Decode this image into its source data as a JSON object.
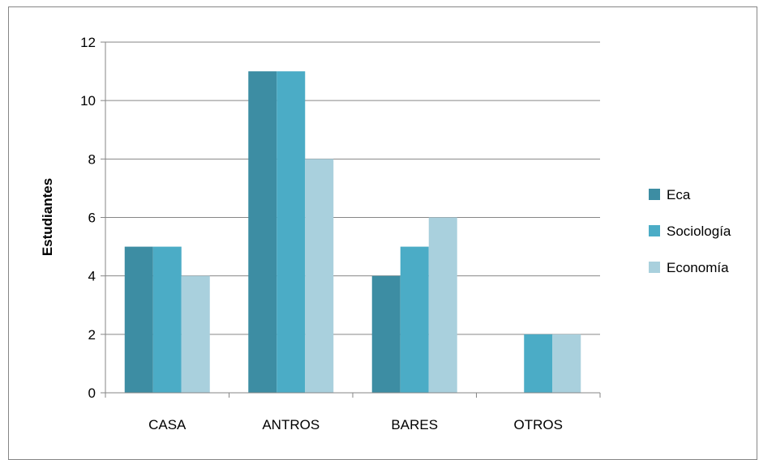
{
  "chart_data": {
    "type": "bar",
    "title": "",
    "xlabel": "",
    "ylabel": "Estudiantes",
    "ylim": [
      0,
      12
    ],
    "y_ticks": [
      0,
      2,
      4,
      6,
      8,
      10,
      12
    ],
    "grid": true,
    "legend_position": "right",
    "categories": [
      "CASA",
      "ANTROS",
      "BARES",
      "OTROS"
    ],
    "series": [
      {
        "name": "Eca",
        "color": "#3d8da3",
        "values": [
          5,
          11,
          4,
          0
        ]
      },
      {
        "name": "Sociología",
        "color": "#4bacc6",
        "values": [
          5,
          11,
          5,
          2
        ]
      },
      {
        "name": "Economía",
        "color": "#a9d0dd",
        "values": [
          4,
          8,
          6,
          2
        ]
      }
    ]
  }
}
